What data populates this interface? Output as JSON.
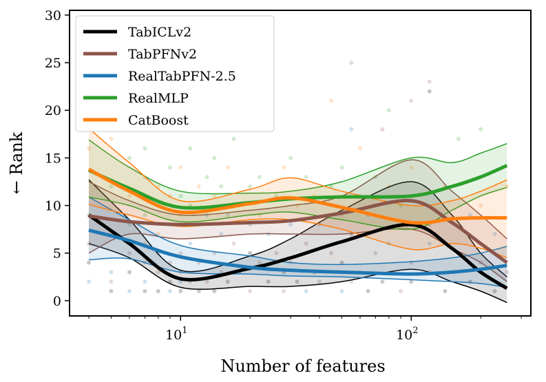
{
  "chart_data": {
    "type": "line",
    "title": "",
    "xlabel": "Number of features",
    "ylabel": "← Rank",
    "xscale": "log",
    "xlim": [
      3.3,
      330
    ],
    "ylim": [
      -1.6,
      30.5
    ],
    "x_ticks": [
      {
        "value": 10,
        "base": "10",
        "exp": "1"
      },
      {
        "value": 100,
        "base": "10",
        "exp": "2"
      }
    ],
    "y_ticks": [
      0,
      5,
      10,
      15,
      20,
      25,
      30
    ],
    "legend_position": "top-left",
    "series": [
      {
        "name": "TabICLv2",
        "color": "#000000",
        "x": [
          4,
          6,
          10,
          20,
          30,
          50,
          100,
          150,
          200,
          260
        ],
        "y": [
          9.0,
          6.0,
          2.3,
          3.4,
          4.5,
          6.2,
          8.0,
          5.5,
          3.0,
          1.3
        ],
        "lower": [
          6.0,
          4.5,
          1.4,
          1.5,
          1.5,
          2.0,
          3.3,
          2.0,
          1.0,
          -0.2
        ],
        "upper": [
          12.7,
          8.5,
          3.2,
          4.7,
          6.5,
          9.5,
          12.5,
          9.0,
          5.0,
          2.5
        ]
      },
      {
        "name": "TabPFNv2",
        "color": "#8c564b",
        "x": [
          4,
          6,
          10,
          20,
          30,
          50,
          100,
          150,
          200,
          260
        ],
        "y": [
          8.9,
          8.3,
          8.0,
          8.2,
          8.4,
          9.2,
          10.5,
          8.2,
          6.0,
          4.0
        ],
        "lower": [
          5.0,
          7.0,
          6.5,
          7.0,
          7.0,
          7.0,
          7.5,
          5.5,
          4.0,
          2.0
        ],
        "upper": [
          12.5,
          10.5,
          9.0,
          9.5,
          10.0,
          11.0,
          14.8,
          11.5,
          9.0,
          6.5
        ]
      },
      {
        "name": "RealTabPFN-2.5",
        "color": "#1f77b4",
        "x": [
          4,
          6,
          10,
          20,
          30,
          50,
          100,
          150,
          200,
          260
        ],
        "y": [
          7.4,
          6.3,
          4.6,
          3.5,
          3.2,
          3.0,
          2.8,
          3.0,
          3.3,
          3.7
        ],
        "lower": [
          4.3,
          4.4,
          3.0,
          2.8,
          2.6,
          2.5,
          2.2,
          2.0,
          1.8,
          1.4
        ],
        "upper": [
          10.9,
          8.5,
          5.8,
          4.7,
          4.0,
          3.8,
          4.1,
          4.5,
          5.0,
          5.7
        ]
      },
      {
        "name": "RealMLP",
        "color": "#2ca02c",
        "x": [
          4,
          6,
          10,
          20,
          30,
          50,
          100,
          150,
          200,
          260
        ],
        "y": [
          13.7,
          11.8,
          9.8,
          10.3,
          10.7,
          10.9,
          11.0,
          12.0,
          13.0,
          14.2
        ],
        "lower": [
          10.9,
          10.0,
          8.3,
          9.0,
          9.3,
          8.5,
          7.5,
          9.5,
          11.0,
          11.9
        ],
        "upper": [
          16.9,
          14.0,
          11.5,
          11.3,
          11.5,
          12.5,
          15.0,
          14.5,
          15.5,
          16.5
        ]
      },
      {
        "name": "CatBoost",
        "color": "#ff7f0e",
        "x": [
          4,
          6,
          10,
          20,
          30,
          50,
          100,
          150,
          200,
          260
        ],
        "y": [
          13.8,
          11.5,
          9.3,
          10.2,
          10.8,
          9.8,
          8.2,
          8.6,
          8.7,
          8.7
        ],
        "lower": [
          10.1,
          9.0,
          7.8,
          8.5,
          8.5,
          7.5,
          5.4,
          6.0,
          5.5,
          4.5
        ],
        "upper": [
          18.1,
          14.5,
          10.5,
          11.7,
          12.9,
          11.5,
          10.0,
          10.5,
          11.5,
          12.7
        ]
      }
    ],
    "scatter_points": [
      {
        "x": 4,
        "y": 2,
        "s": 2
      },
      {
        "x": 4,
        "y": 4,
        "s": 0
      },
      {
        "x": 4,
        "y": 6,
        "s": 1
      },
      {
        "x": 4,
        "y": 9,
        "s": 3
      },
      {
        "x": 4,
        "y": 16,
        "s": 4
      },
      {
        "x": 5,
        "y": 1,
        "s": 0
      },
      {
        "x": 5,
        "y": 3,
        "s": 2
      },
      {
        "x": 5,
        "y": 7,
        "s": 4
      },
      {
        "x": 5,
        "y": 12,
        "s": 3
      },
      {
        "x": 5,
        "y": 17,
        "s": 4
      },
      {
        "x": 5,
        "y": 2,
        "s": 1
      },
      {
        "x": 6,
        "y": 1,
        "s": 2
      },
      {
        "x": 6,
        "y": 3,
        "s": 0
      },
      {
        "x": 6,
        "y": 5,
        "s": 1
      },
      {
        "x": 6,
        "y": 8,
        "s": 3
      },
      {
        "x": 6,
        "y": 11,
        "s": 4
      },
      {
        "x": 6,
        "y": 15,
        "s": 3
      },
      {
        "x": 7,
        "y": 1,
        "s": 0
      },
      {
        "x": 7,
        "y": 2,
        "s": 2
      },
      {
        "x": 7,
        "y": 4,
        "s": 1
      },
      {
        "x": 7,
        "y": 6,
        "s": 4
      },
      {
        "x": 7,
        "y": 9,
        "s": 3
      },
      {
        "x": 7,
        "y": 13,
        "s": 4
      },
      {
        "x": 7,
        "y": 16,
        "s": 3
      },
      {
        "x": 8,
        "y": 1,
        "s": 0
      },
      {
        "x": 8,
        "y": 3,
        "s": 1
      },
      {
        "x": 8,
        "y": 5,
        "s": 2
      },
      {
        "x": 8,
        "y": 7,
        "s": 4
      },
      {
        "x": 8,
        "y": 10,
        "s": 3
      },
      {
        "x": 8,
        "y": 12,
        "s": 4
      },
      {
        "x": 9,
        "y": 1,
        "s": 2
      },
      {
        "x": 9,
        "y": 2,
        "s": 0
      },
      {
        "x": 9,
        "y": 4,
        "s": 1
      },
      {
        "x": 9,
        "y": 8,
        "s": 3
      },
      {
        "x": 9,
        "y": 11,
        "s": 4
      },
      {
        "x": 9,
        "y": 14,
        "s": 3
      },
      {
        "x": 10,
        "y": 1,
        "s": 0
      },
      {
        "x": 10,
        "y": 2,
        "s": 2
      },
      {
        "x": 10,
        "y": 3,
        "s": 1
      },
      {
        "x": 10,
        "y": 5,
        "s": 1
      },
      {
        "x": 10,
        "y": 9,
        "s": 4
      },
      {
        "x": 10,
        "y": 11,
        "s": 3
      },
      {
        "x": 10,
        "y": 14,
        "s": 4
      },
      {
        "x": 11,
        "y": 2,
        "s": 1
      },
      {
        "x": 11,
        "y": 6,
        "s": 2
      },
      {
        "x": 11,
        "y": 10,
        "s": 3
      },
      {
        "x": 11,
        "y": 16,
        "s": 3
      },
      {
        "x": 12,
        "y": 1,
        "s": 0
      },
      {
        "x": 12,
        "y": 4,
        "s": 1
      },
      {
        "x": 12,
        "y": 8,
        "s": 2
      },
      {
        "x": 12,
        "y": 12,
        "s": 4
      },
      {
        "x": 13,
        "y": 2,
        "s": 1
      },
      {
        "x": 13,
        "y": 9,
        "s": 2
      },
      {
        "x": 13,
        "y": 13,
        "s": 3
      },
      {
        "x": 14,
        "y": 1,
        "s": 0
      },
      {
        "x": 14,
        "y": 5,
        "s": 1
      },
      {
        "x": 14,
        "y": 11,
        "s": 4
      },
      {
        "x": 14,
        "y": 15,
        "s": 3
      },
      {
        "x": 15,
        "y": 3,
        "s": 1
      },
      {
        "x": 15,
        "y": 7,
        "s": 2
      },
      {
        "x": 15,
        "y": 12,
        "s": 3
      },
      {
        "x": 16,
        "y": 2,
        "s": 0
      },
      {
        "x": 16,
        "y": 9,
        "s": 2
      },
      {
        "x": 16,
        "y": 14,
        "s": 4
      },
      {
        "x": 17,
        "y": 6,
        "s": 1
      },
      {
        "x": 17,
        "y": 17,
        "s": 3
      },
      {
        "x": 18,
        "y": 3,
        "s": 0
      },
      {
        "x": 18,
        "y": 10,
        "s": 4
      },
      {
        "x": 20,
        "y": 1,
        "s": 1
      },
      {
        "x": 20,
        "y": 5,
        "s": 0
      },
      {
        "x": 20,
        "y": 8,
        "s": 2
      },
      {
        "x": 20,
        "y": 12,
        "s": 3
      },
      {
        "x": 22,
        "y": 4,
        "s": 1
      },
      {
        "x": 22,
        "y": 9,
        "s": 4
      },
      {
        "x": 22,
        "y": 13,
        "s": 3
      },
      {
        "x": 24,
        "y": 2,
        "s": 0
      },
      {
        "x": 24,
        "y": 7,
        "s": 2
      },
      {
        "x": 26,
        "y": 5,
        "s": 1
      },
      {
        "x": 26,
        "y": 11,
        "s": 3
      },
      {
        "x": 28,
        "y": 1,
        "s": 1
      },
      {
        "x": 28,
        "y": 3,
        "s": 0
      },
      {
        "x": 28,
        "y": 14,
        "s": 4
      },
      {
        "x": 30,
        "y": 4,
        "s": 1
      },
      {
        "x": 30,
        "y": 8,
        "s": 2
      },
      {
        "x": 30,
        "y": 15,
        "s": 3
      },
      {
        "x": 32,
        "y": 2,
        "s": 0
      },
      {
        "x": 32,
        "y": 10,
        "s": 4
      },
      {
        "x": 35,
        "y": 1,
        "s": 2
      },
      {
        "x": 35,
        "y": 6,
        "s": 1
      },
      {
        "x": 35,
        "y": 13,
        "s": 3
      },
      {
        "x": 38,
        "y": 3,
        "s": 0
      },
      {
        "x": 38,
        "y": 11,
        "s": 4
      },
      {
        "x": 40,
        "y": 2,
        "s": 1
      },
      {
        "x": 40,
        "y": 8,
        "s": 2
      },
      {
        "x": 45,
        "y": 5,
        "s": 1
      },
      {
        "x": 45,
        "y": 12,
        "s": 3
      },
      {
        "x": 45,
        "y": 21,
        "s": 4
      },
      {
        "x": 50,
        "y": 1,
        "s": 2
      },
      {
        "x": 50,
        "y": 4,
        "s": 0
      },
      {
        "x": 50,
        "y": 9,
        "s": 4
      },
      {
        "x": 50,
        "y": 14,
        "s": 3
      },
      {
        "x": 55,
        "y": 2,
        "s": 1
      },
      {
        "x": 55,
        "y": 7,
        "s": 0
      },
      {
        "x": 55,
        "y": 25,
        "s": 1
      },
      {
        "x": 55,
        "y": 18,
        "s": 2
      },
      {
        "x": 60,
        "y": 3,
        "s": 1
      },
      {
        "x": 60,
        "y": 11,
        "s": 3
      },
      {
        "x": 60,
        "y": 16,
        "s": 4
      },
      {
        "x": 65,
        "y": 1,
        "s": 0
      },
      {
        "x": 65,
        "y": 9,
        "s": 2
      },
      {
        "x": 70,
        "y": 5,
        "s": 1
      },
      {
        "x": 70,
        "y": 13,
        "s": 3
      },
      {
        "x": 75,
        "y": 2,
        "s": 0
      },
      {
        "x": 75,
        "y": 18,
        "s": 1
      },
      {
        "x": 80,
        "y": 6,
        "s": 2
      },
      {
        "x": 80,
        "y": 12,
        "s": 4
      },
      {
        "x": 80,
        "y": 20,
        "s": 3
      },
      {
        "x": 90,
        "y": 1,
        "s": 1
      },
      {
        "x": 90,
        "y": 10,
        "s": 3
      },
      {
        "x": 100,
        "y": 2,
        "s": 0
      },
      {
        "x": 100,
        "y": 4,
        "s": 1
      },
      {
        "x": 100,
        "y": 8,
        "s": 2
      },
      {
        "x": 100,
        "y": 14,
        "s": 4
      },
      {
        "x": 100,
        "y": 21,
        "s": 1
      },
      {
        "x": 120,
        "y": 3,
        "s": 1
      },
      {
        "x": 120,
        "y": 8,
        "s": 3
      },
      {
        "x": 120,
        "y": 22,
        "s": 0
      },
      {
        "x": 120,
        "y": 23,
        "s": 1
      },
      {
        "x": 120,
        "y": 6,
        "s": 2
      },
      {
        "x": 140,
        "y": 1,
        "s": 0
      },
      {
        "x": 140,
        "y": 12,
        "s": 4
      },
      {
        "x": 160,
        "y": 5,
        "s": 1
      },
      {
        "x": 160,
        "y": 17,
        "s": 3
      },
      {
        "x": 180,
        "y": 2,
        "s": 0
      },
      {
        "x": 180,
        "y": 9,
        "s": 2
      },
      {
        "x": 200,
        "y": 4,
        "s": 1
      },
      {
        "x": 200,
        "y": 10,
        "s": 4
      },
      {
        "x": 200,
        "y": 18,
        "s": 3
      },
      {
        "x": 230,
        "y": 1,
        "s": 0
      },
      {
        "x": 230,
        "y": 7,
        "s": 2
      },
      {
        "x": 260,
        "y": 3,
        "s": 1
      },
      {
        "x": 260,
        "y": 12,
        "s": 4
      }
    ]
  }
}
